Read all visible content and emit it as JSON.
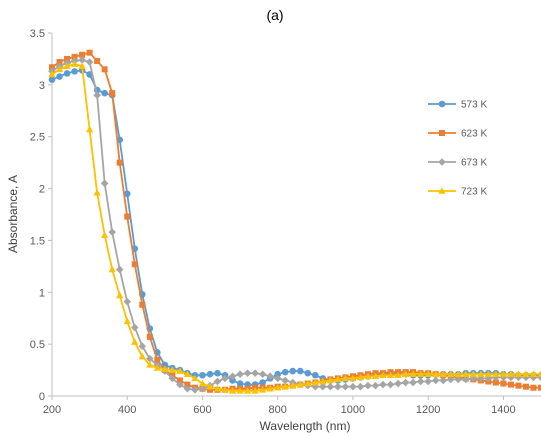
{
  "chart_data": {
    "type": "line",
    "title": "(a)",
    "xlabel": "Wavelength (nm)",
    "ylabel": "Absorbance, A",
    "xlim": [
      200,
      1500
    ],
    "ylim": [
      0,
      3.5
    ],
    "xticks": [
      "200",
      "400",
      "600",
      "800",
      "1000",
      "1200",
      "1400"
    ],
    "yticks": [
      "0",
      "0.5",
      "1",
      "1.5",
      "2",
      "2.5",
      "3",
      "3.5"
    ],
    "grid": false,
    "legend": "right",
    "series": [
      {
        "name": "573 K",
        "color": "#5B9BD5",
        "marker": "circle",
        "x": [
          200,
          220,
          240,
          260,
          280,
          300,
          320,
          340,
          360,
          380,
          400,
          420,
          440,
          460,
          480,
          500,
          520,
          540,
          560,
          580,
          600,
          620,
          640,
          660,
          680,
          700,
          720,
          740,
          760,
          780,
          800,
          820,
          840,
          860,
          880,
          900,
          920,
          940,
          960,
          980,
          1000,
          1020,
          1040,
          1060,
          1080,
          1100,
          1120,
          1140,
          1160,
          1180,
          1200,
          1220,
          1240,
          1260,
          1280,
          1300,
          1320,
          1340,
          1360,
          1380,
          1400,
          1420,
          1440,
          1460,
          1480,
          1500
        ],
        "y": [
          3.05,
          3.08,
          3.11,
          3.13,
          3.14,
          3.1,
          2.95,
          2.92,
          2.9,
          2.47,
          1.95,
          1.42,
          0.98,
          0.65,
          0.42,
          0.3,
          0.27,
          0.25,
          0.22,
          0.2,
          0.2,
          0.21,
          0.22,
          0.2,
          0.15,
          0.12,
          0.11,
          0.11,
          0.13,
          0.17,
          0.21,
          0.23,
          0.24,
          0.24,
          0.22,
          0.2,
          0.17,
          0.15,
          0.15,
          0.16,
          0.17,
          0.18,
          0.19,
          0.2,
          0.21,
          0.21,
          0.21,
          0.21,
          0.2,
          0.2,
          0.2,
          0.21,
          0.21,
          0.21,
          0.21,
          0.22,
          0.22,
          0.22,
          0.22,
          0.22,
          0.21,
          0.21,
          0.2,
          0.2,
          0.2,
          0.2
        ]
      },
      {
        "name": "623 K",
        "color": "#ED7D31",
        "marker": "square",
        "x": [
          200,
          220,
          240,
          260,
          280,
          300,
          320,
          340,
          360,
          380,
          400,
          420,
          440,
          460,
          480,
          500,
          520,
          540,
          560,
          580,
          600,
          620,
          640,
          660,
          680,
          700,
          720,
          740,
          760,
          780,
          800,
          820,
          840,
          860,
          880,
          900,
          920,
          940,
          960,
          980,
          1000,
          1020,
          1040,
          1060,
          1080,
          1100,
          1120,
          1140,
          1160,
          1180,
          1200,
          1220,
          1240,
          1260,
          1280,
          1300,
          1320,
          1340,
          1360,
          1380,
          1400,
          1420,
          1440,
          1460,
          1480,
          1500
        ],
        "y": [
          3.17,
          3.22,
          3.25,
          3.27,
          3.29,
          3.31,
          3.23,
          3.15,
          2.92,
          2.25,
          1.73,
          1.27,
          0.88,
          0.57,
          0.35,
          0.25,
          0.2,
          0.15,
          0.11,
          0.08,
          0.07,
          0.06,
          0.06,
          0.06,
          0.07,
          0.07,
          0.07,
          0.08,
          0.08,
          0.08,
          0.09,
          0.09,
          0.1,
          0.11,
          0.12,
          0.13,
          0.14,
          0.16,
          0.17,
          0.18,
          0.19,
          0.2,
          0.21,
          0.22,
          0.22,
          0.23,
          0.23,
          0.23,
          0.23,
          0.22,
          0.22,
          0.21,
          0.2,
          0.19,
          0.18,
          0.17,
          0.16,
          0.15,
          0.14,
          0.13,
          0.12,
          0.11,
          0.1,
          0.09,
          0.08,
          0.08
        ]
      },
      {
        "name": "673 K",
        "color": "#A5A5A5",
        "marker": "diamond",
        "x": [
          200,
          220,
          240,
          260,
          280,
          300,
          320,
          340,
          360,
          380,
          400,
          420,
          440,
          460,
          480,
          500,
          520,
          540,
          560,
          580,
          600,
          620,
          640,
          660,
          680,
          700,
          720,
          740,
          760,
          780,
          800,
          820,
          840,
          860,
          880,
          900,
          920,
          940,
          960,
          980,
          1000,
          1020,
          1040,
          1060,
          1080,
          1100,
          1120,
          1140,
          1160,
          1180,
          1200,
          1220,
          1240,
          1260,
          1280,
          1300,
          1320,
          1340,
          1360,
          1380,
          1400,
          1420,
          1440,
          1460,
          1480,
          1500
        ],
        "y": [
          3.13,
          3.18,
          3.21,
          3.23,
          3.24,
          3.22,
          2.9,
          2.05,
          1.58,
          1.22,
          0.91,
          0.66,
          0.48,
          0.36,
          0.3,
          0.24,
          0.17,
          0.11,
          0.07,
          0.06,
          0.07,
          0.1,
          0.14,
          0.17,
          0.19,
          0.21,
          0.22,
          0.22,
          0.21,
          0.19,
          0.17,
          0.15,
          0.13,
          0.11,
          0.1,
          0.09,
          0.09,
          0.09,
          0.09,
          0.09,
          0.09,
          0.09,
          0.1,
          0.1,
          0.11,
          0.11,
          0.12,
          0.13,
          0.13,
          0.14,
          0.14,
          0.15,
          0.15,
          0.16,
          0.16,
          0.16,
          0.17,
          0.17,
          0.17,
          0.18,
          0.18,
          0.18,
          0.18,
          0.18,
          0.18,
          0.18
        ]
      },
      {
        "name": "723 K",
        "color": "#FFC000",
        "marker": "triangle",
        "x": [
          200,
          220,
          240,
          260,
          280,
          300,
          320,
          340,
          360,
          380,
          400,
          420,
          440,
          460,
          480,
          500,
          520,
          540,
          560,
          580,
          600,
          620,
          640,
          660,
          680,
          700,
          720,
          740,
          760,
          780,
          800,
          820,
          840,
          860,
          880,
          900,
          920,
          940,
          960,
          980,
          1000,
          1020,
          1040,
          1060,
          1080,
          1100,
          1120,
          1140,
          1160,
          1180,
          1200,
          1220,
          1240,
          1260,
          1280,
          1300,
          1320,
          1340,
          1360,
          1380,
          1400,
          1420,
          1440,
          1460,
          1480,
          1500
        ],
        "y": [
          3.1,
          3.15,
          3.18,
          3.2,
          3.18,
          2.57,
          1.96,
          1.55,
          1.22,
          0.97,
          0.72,
          0.52,
          0.38,
          0.3,
          0.27,
          0.26,
          0.25,
          0.24,
          0.21,
          0.17,
          0.12,
          0.09,
          0.07,
          0.06,
          0.05,
          0.05,
          0.05,
          0.05,
          0.06,
          0.07,
          0.08,
          0.09,
          0.1,
          0.11,
          0.12,
          0.13,
          0.14,
          0.15,
          0.16,
          0.17,
          0.17,
          0.18,
          0.19,
          0.19,
          0.2,
          0.2,
          0.2,
          0.21,
          0.21,
          0.21,
          0.21,
          0.21,
          0.21,
          0.21,
          0.21,
          0.21,
          0.21,
          0.21,
          0.21,
          0.21,
          0.21,
          0.21,
          0.21,
          0.21,
          0.21,
          0.21
        ]
      }
    ]
  }
}
